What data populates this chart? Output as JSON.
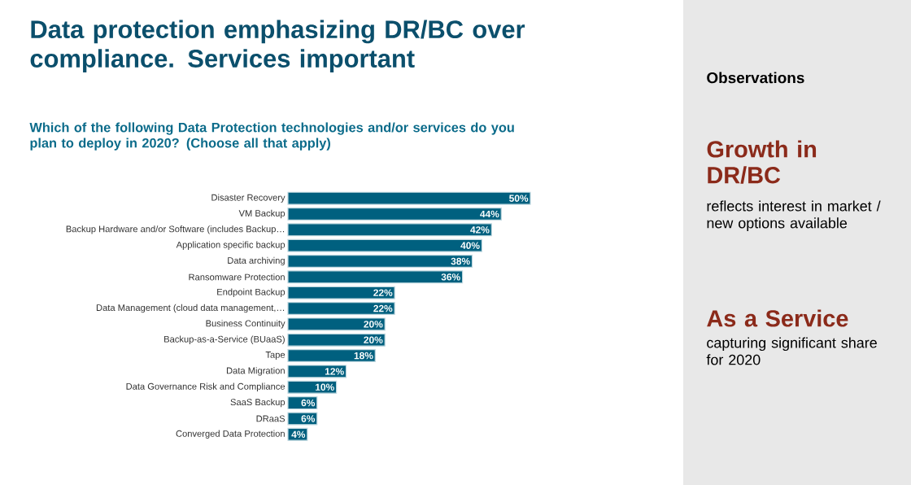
{
  "chart_data": {
    "type": "bar",
    "orientation": "horizontal",
    "title": "Data protection emphasizing DR/BC over compliance.  Services important",
    "subtitle": "Which of the following Data Protection technologies and/or services do you plan to deploy in 2020? (Choose all that apply)",
    "categories": [
      "Disaster Recovery",
      "VM Backup",
      "Backup Hardware and/or Software (includes Backup…",
      "Application specific backup",
      "Data archiving",
      "Ransomware Protection",
      "Endpoint Backup",
      "Data Management (cloud data management,…",
      "Business Continuity",
      "Backup-as-a-Service (BUaaS)",
      "Tape",
      "Data Migration",
      "Data Governance Risk and Compliance",
      "SaaS Backup",
      "DRaaS",
      "Converged Data Protection"
    ],
    "values": [
      50,
      44,
      42,
      40,
      38,
      36,
      22,
      22,
      20,
      20,
      18,
      12,
      10,
      6,
      6,
      4
    ],
    "value_labels": [
      "50%",
      "44%",
      "42%",
      "40%",
      "38%",
      "36%",
      "22%",
      "22%",
      "20%",
      "20%",
      "18%",
      "12%",
      "10%",
      "6%",
      "6%",
      "4%"
    ],
    "color": "#00607f",
    "xlim": [
      0,
      50
    ],
    "tick_labels": "y",
    "annotations": [
      "Observations",
      "Growth in DR/BC",
      "reflects interest in market / new options available",
      "As a Service",
      "capturing significant share for 2020"
    ]
  }
}
